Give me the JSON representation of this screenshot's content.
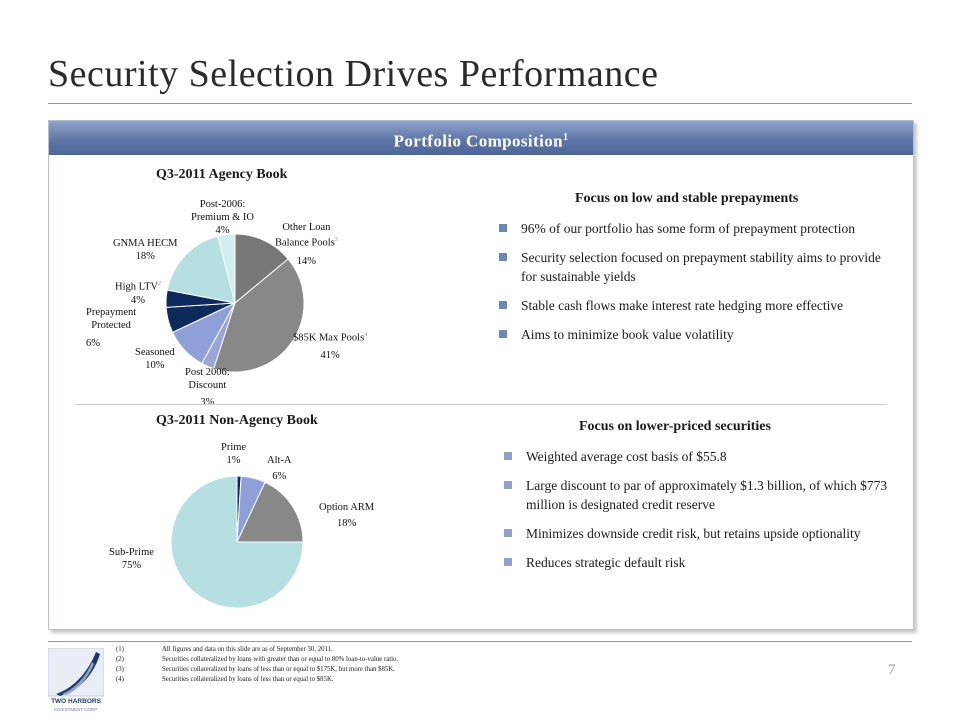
{
  "slide": {
    "title": "Security Selection Drives Performance",
    "page_number": "7"
  },
  "panel": {
    "header": "Portfolio Composition",
    "header_sup": "1"
  },
  "agency": {
    "chart_title": "Q3-2011 Agency Book",
    "focus_title": "Focus on low and stable prepayments",
    "bullets": [
      "96% of our portfolio has some form of prepayment protection",
      "Security selection focused on prepayment stability aims to provide for sustainable yields",
      "Stable cash flows make interest rate hedging more effective",
      "Aims to minimize book value volatility"
    ],
    "labels": {
      "other_loan": {
        "name1": "Other Loan",
        "name2": "Balance Pools",
        "sup": "3",
        "pct": "14%"
      },
      "max_85k": {
        "name": "$85K Max Pools",
        "sup": "4",
        "pct": "41%"
      },
      "post2006_discount": {
        "name1": "Post 2006:",
        "name2": "Discount",
        "pct": "3%"
      },
      "seasoned": {
        "name": "Seasoned",
        "pct": "10%"
      },
      "prepayment_protected": {
        "name1": "Prepayment",
        "name2": "Protected",
        "pct": "6%"
      },
      "high_ltv": {
        "name": "High LTV",
        "sup": "2",
        "pct": "4%"
      },
      "gnma_hecm": {
        "name": "GNMA HECM",
        "pct": "18%"
      },
      "post2006_premium": {
        "name1": "Post-2006:",
        "name2": "Premium & IO",
        "pct": "4%"
      }
    }
  },
  "nonagency": {
    "chart_title": "Q3-2011 Non-Agency Book",
    "focus_title": "Focus on lower-priced securities",
    "bullets": [
      "Weighted average cost basis of $55.8",
      "Large discount to par of approximately $1.3 billion, of which $773 million is designated credit reserve",
      "Minimizes downside credit risk, but retains upside optionality",
      "Reduces strategic default risk"
    ],
    "labels": {
      "prime": {
        "name": "Prime",
        "pct": "1%"
      },
      "alt_a": {
        "name": "Alt-A",
        "pct": "6%"
      },
      "option_arm": {
        "name": "Option ARM",
        "pct": "18%"
      },
      "sub_prime": {
        "name": "Sub-Prime",
        "pct": "75%"
      }
    }
  },
  "chart_data": [
    {
      "type": "pie",
      "title": "Q3-2011 Agency Book",
      "categories": [
        "Other Loan Balance Pools",
        "$85K Max Pools",
        "Post 2006: Discount",
        "Seasoned",
        "Prepayment Protected",
        "High LTV",
        "GNMA HECM",
        "Post-2006: Premium & IO"
      ],
      "values": [
        14,
        41,
        3,
        10,
        6,
        4,
        18,
        4
      ],
      "colors": [
        "#777777",
        "#888888",
        "#9aa6d8",
        "#8fa0d8",
        "#0e2a5c",
        "#0e2a5c",
        "#b6dfe1",
        "#d3ecee"
      ]
    },
    {
      "type": "pie",
      "title": "Q3-2011 Non-Agency Book",
      "categories": [
        "Prime",
        "Alt-A",
        "Option ARM",
        "Sub-Prime"
      ],
      "values": [
        1,
        6,
        18,
        75
      ],
      "colors": [
        "#0e2a5c",
        "#8fa0d8",
        "#888888",
        "#b6dfe1"
      ]
    }
  ],
  "footnotes": [
    {
      "num": "(1)",
      "text": "All figures and data on this slide are as of September 30, 2011."
    },
    {
      "num": "(2)",
      "text": "Securities collateralized by loans with greater than or equal to 80% loan-to-value ratio."
    },
    {
      "num": "(3)",
      "text": "Securities collateralized by loans of less than or equal to $175K, but more than $85K."
    },
    {
      "num": "(4)",
      "text": "Securities collateralized by loans of less than or equal to $85K."
    }
  ],
  "logo": {
    "name": "TWO HARBORS",
    "sub": "INVESTMENT CORP."
  }
}
